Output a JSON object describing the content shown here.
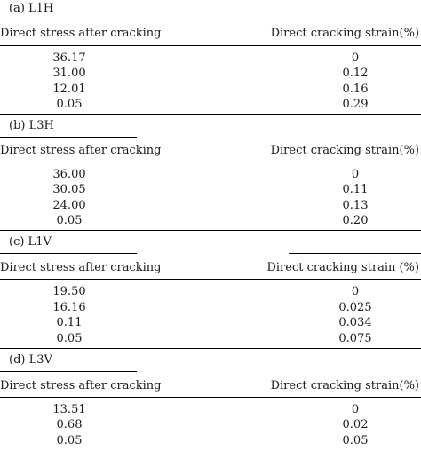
{
  "tables": [
    {
      "title": "(a) L1H",
      "header_left": "Direct stress after cracking",
      "header_right": "Direct cracking strain(%)",
      "rows": [
        {
          "stress": "36.17",
          "strain": "0"
        },
        {
          "stress": "31.00",
          "strain": "0.12"
        },
        {
          "stress": "12.01",
          "strain": "0.16"
        },
        {
          "stress": "0.05",
          "strain": "0.29"
        }
      ]
    },
    {
      "title": "(b) L3H",
      "header_left": "Direct stress after cracking",
      "header_right": "Direct cracking strain(%)",
      "rows": [
        {
          "stress": "36.00",
          "strain": "0"
        },
        {
          "stress": "30.05",
          "strain": "0.11"
        },
        {
          "stress": "24.00",
          "strain": "0.13"
        },
        {
          "stress": "0.05",
          "strain": "0.20"
        }
      ]
    },
    {
      "title": "(c) L1V",
      "header_left": "Direct stress after cracking",
      "header_right": "Direct cracking strain (%)",
      "rows": [
        {
          "stress": "19.50",
          "strain": "0"
        },
        {
          "stress": "16.16",
          "strain": "0.025"
        },
        {
          "stress": "0.11",
          "strain": "0.034"
        },
        {
          "stress": "0.05",
          "strain": "0.075"
        }
      ]
    },
    {
      "title": "(d) L3V",
      "header_left": "Direct stress after cracking",
      "header_right": "Direct cracking strain(%)",
      "rows": [
        {
          "stress": "13.51",
          "strain": "0"
        },
        {
          "stress": "0.68",
          "strain": "0.02"
        },
        {
          "stress": "0.05",
          "strain": "0.05"
        }
      ]
    }
  ]
}
